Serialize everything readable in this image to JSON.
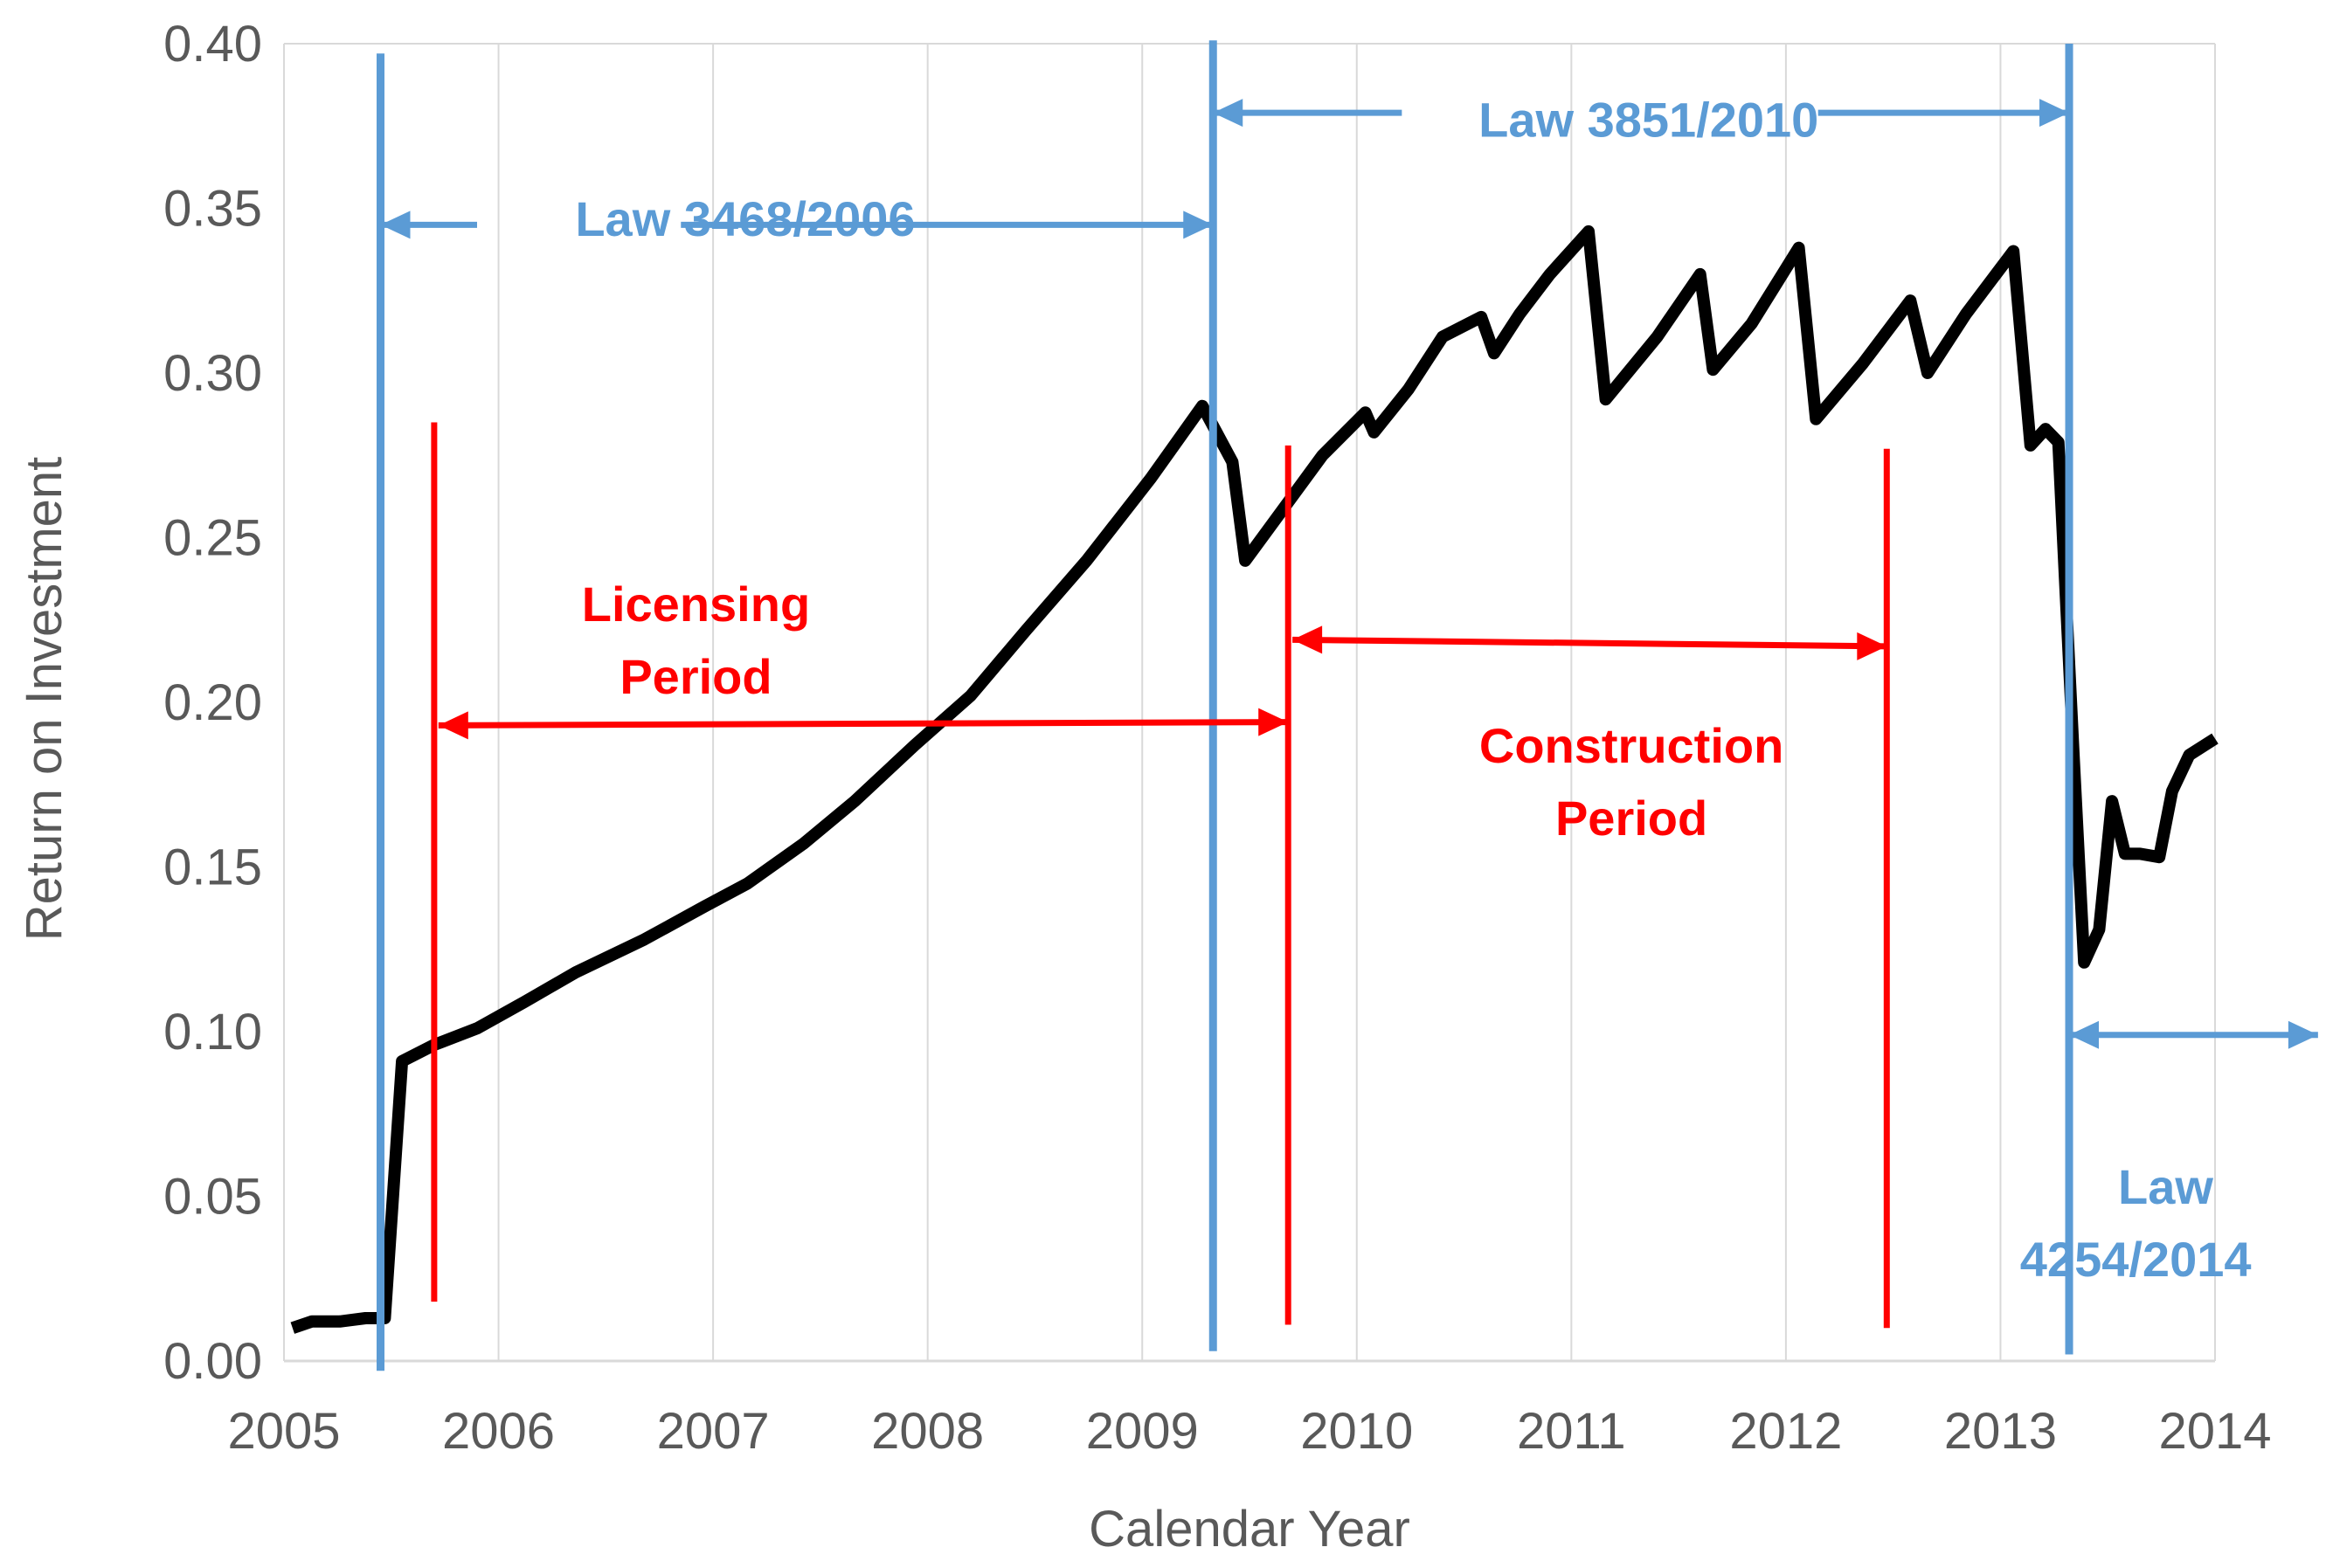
{
  "chart_data": {
    "type": "line",
    "title": "",
    "xlabel": "Calendar Year",
    "ylabel": "Return on Investment",
    "xlim": [
      2005,
      2014
    ],
    "ylim": [
      0,
      0.4
    ],
    "x_ticks": [
      "2005",
      "2006",
      "2007",
      "2008",
      "2009",
      "2010",
      "2011",
      "2012",
      "2013",
      "2014"
    ],
    "y_ticks": [
      "0.00",
      "0.05",
      "0.10",
      "0.15",
      "0.20",
      "0.25",
      "0.30",
      "0.35",
      "0.40"
    ],
    "grid": "vertical",
    "series": [
      {
        "name": "Return on Investment",
        "color": "#000000",
        "x": [
          2005.04,
          2005.13,
          2005.26,
          2005.38,
          2005.47,
          2005.55,
          2005.7,
          2005.9,
          2006.12,
          2006.36,
          2006.68,
          2006.96,
          2007.16,
          2007.42,
          2007.66,
          2007.94,
          2008.2,
          2008.46,
          2008.74,
          2009.04,
          2009.28,
          2009.42,
          2009.48,
          2009.66,
          2009.84,
          2010.04,
          2010.08,
          2010.24,
          2010.4,
          2010.58,
          2010.64,
          2010.76,
          2010.9,
          2011.08,
          2011.16,
          2011.4,
          2011.6,
          2011.66,
          2011.84,
          2012.06,
          2012.14,
          2012.36,
          2012.58,
          2012.66,
          2012.84,
          2013.06,
          2013.14,
          2013.21,
          2013.27,
          2013.34,
          2013.39,
          2013.46,
          2013.52,
          2013.58,
          2013.65,
          2013.74,
          2013.8,
          2013.88,
          2014.0
        ],
        "y": [
          0.01,
          0.012,
          0.012,
          0.013,
          0.013,
          0.091,
          0.096,
          0.101,
          0.109,
          0.118,
          0.128,
          0.138,
          0.145,
          0.157,
          0.17,
          0.187,
          0.202,
          0.222,
          0.243,
          0.268,
          0.29,
          0.273,
          0.243,
          0.259,
          0.275,
          0.288,
          0.282,
          0.295,
          0.311,
          0.317,
          0.306,
          0.318,
          0.33,
          0.343,
          0.292,
          0.311,
          0.33,
          0.301,
          0.315,
          0.338,
          0.286,
          0.303,
          0.322,
          0.3,
          0.318,
          0.337,
          0.278,
          0.283,
          0.279,
          0.185,
          0.121,
          0.131,
          0.17,
          0.154,
          0.154,
          0.153,
          0.173,
          0.184,
          0.189
        ]
      }
    ],
    "vertical_lines": [
      {
        "x": 2005.45,
        "color": "#5b9bd5",
        "y_from": -0.003,
        "y_to": 0.397
      },
      {
        "x": 2009.33,
        "color": "#5b9bd5",
        "y_from": 0.003,
        "y_to": 0.401
      },
      {
        "x": 2013.32,
        "color": "#5b9bd5",
        "y_from": 0.002,
        "y_to": 0.4
      },
      {
        "x": 2005.7,
        "color": "#ff0000",
        "y_from": 0.018,
        "y_to": 0.285
      },
      {
        "x": 2009.68,
        "color": "#ff0000",
        "y_from": 0.011,
        "y_to": 0.278
      },
      {
        "x": 2012.47,
        "color": "#ff0000",
        "y_from": 0.01,
        "y_to": 0.277
      }
    ],
    "annotations": [
      {
        "text": "Law 3468/2006",
        "color": "#5b9bd5",
        "x": 2007.15,
        "y": 0.347
      },
      {
        "text": "Law 3851/2010",
        "color": "#5b9bd5",
        "x": 2011.36,
        "y": 0.377
      },
      {
        "text": "Law",
        "color": "#5b9bd5",
        "x": 2013.77,
        "y": 0.053
      },
      {
        "text": "4254/2014",
        "color": "#5b9bd5",
        "x": 2013.63,
        "y": 0.031
      },
      {
        "text": "Licensing",
        "color": "#ff0000",
        "x": 2006.92,
        "y": 0.23
      },
      {
        "text": "Period",
        "color": "#ff0000",
        "x": 2006.92,
        "y": 0.208
      },
      {
        "text": "Construction",
        "color": "#ff0000",
        "x": 2011.28,
        "y": 0.187
      },
      {
        "text": "Period",
        "color": "#ff0000",
        "x": 2011.28,
        "y": 0.165
      }
    ],
    "arrows": [
      {
        "color": "#5b9bd5",
        "y": 0.345,
        "segments": [
          [
            2005.45,
            2005.9
          ],
          [
            2006.85,
            2009.33
          ]
        ],
        "heads": [
          "left",
          "right"
        ]
      },
      {
        "color": "#5b9bd5",
        "y": 0.379,
        "segments": [
          [
            2009.33,
            2010.21
          ],
          [
            2012.15,
            2013.32
          ]
        ],
        "heads": [
          "left",
          "right"
        ]
      },
      {
        "color": "#5b9bd5",
        "y": 0.099,
        "segments": [
          [
            2013.32,
            2014.48
          ]
        ],
        "heads": [
          "left",
          "right"
        ]
      },
      {
        "color": "#ff0000",
        "y": 0.193,
        "y_end": 0.194,
        "segments": [
          [
            2005.72,
            2009.68
          ]
        ],
        "heads": [
          "left",
          "right"
        ]
      },
      {
        "color": "#ff0000",
        "y": 0.219,
        "y_end": 0.217,
        "segments": [
          [
            2009.7,
            2012.47
          ]
        ],
        "heads": [
          "left",
          "right"
        ]
      }
    ]
  }
}
